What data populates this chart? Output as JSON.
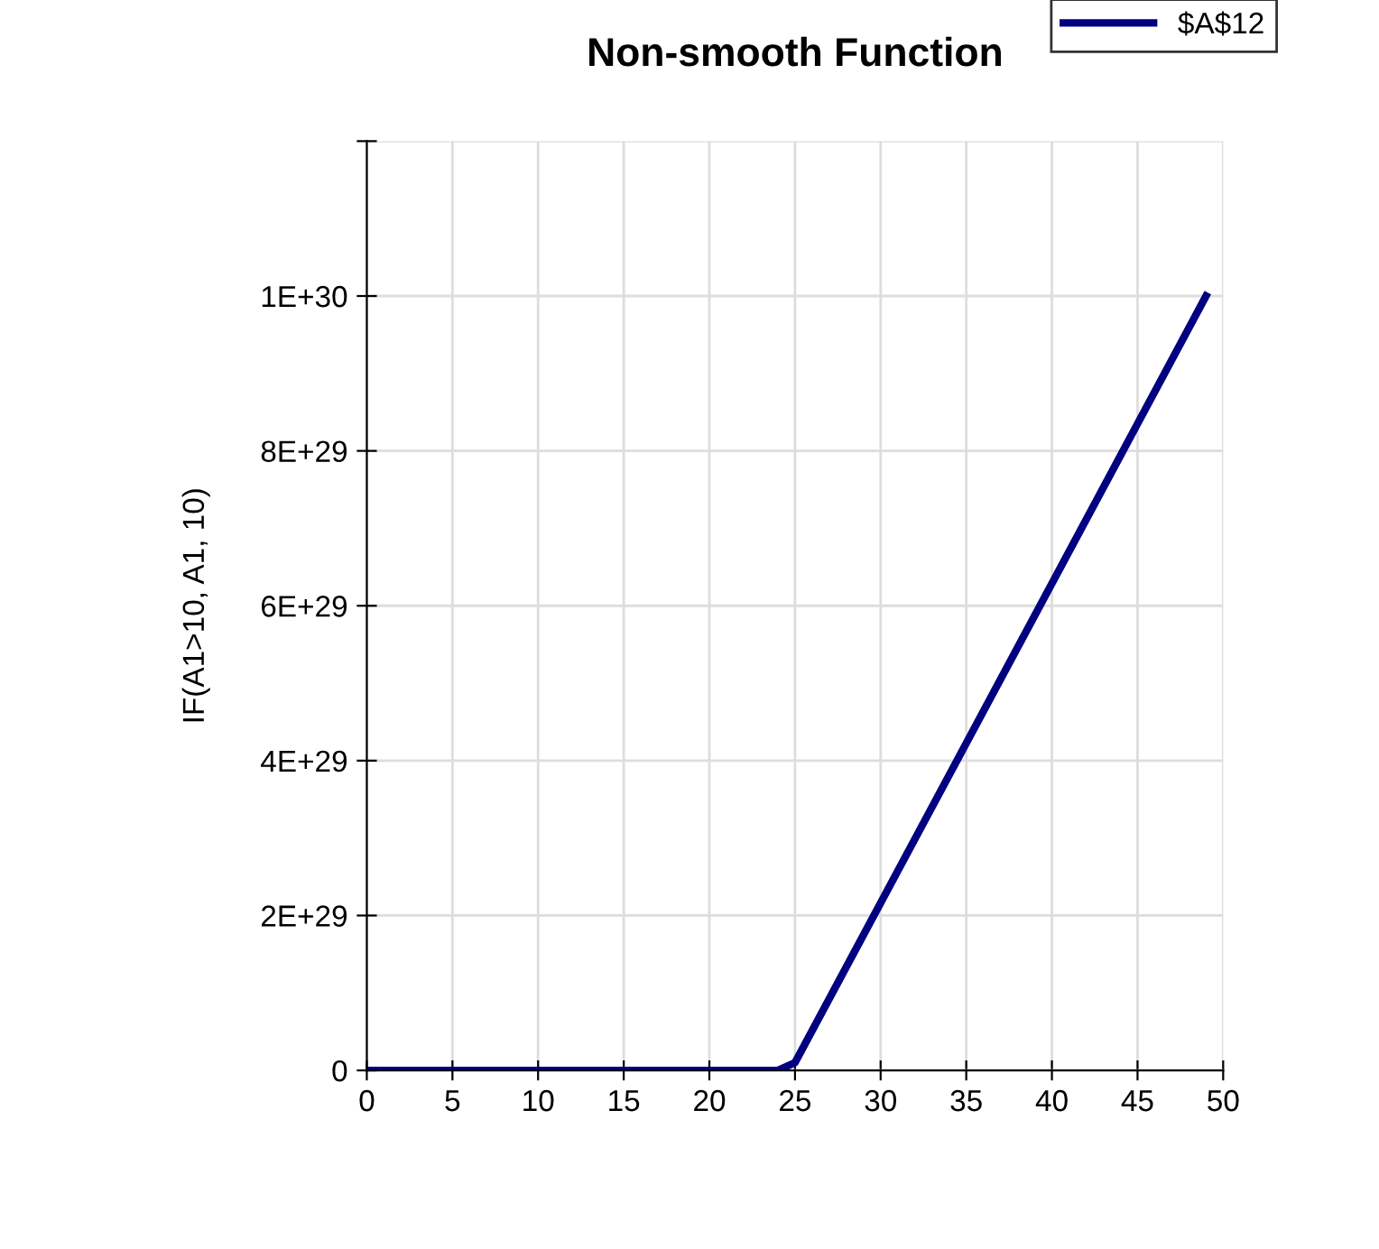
{
  "chart_data": {
    "type": "line",
    "title": "Non-smooth Function",
    "ylabel": "IF(A1>10, A1, 10)",
    "x": [
      0,
      24,
      25,
      49
    ],
    "series": [
      {
        "name": "$A$12",
        "color": "#000080",
        "values": [
          0,
          0,
          1e+28,
          1e+30
        ]
      }
    ],
    "xlim": [
      0,
      50
    ],
    "xticks": [
      0,
      5,
      10,
      15,
      20,
      25,
      30,
      35,
      40,
      45,
      50
    ],
    "ylim": [
      0,
      1.2e+30
    ],
    "yticks": [
      {
        "value": 0,
        "label": "0"
      },
      {
        "value": 2e+29,
        "label": "2E+29"
      },
      {
        "value": 4e+29,
        "label": "4E+29"
      },
      {
        "value": 6e+29,
        "label": "6E+29"
      },
      {
        "value": 8e+29,
        "label": "8E+29"
      },
      {
        "value": 1e+30,
        "label": "1E+30"
      },
      {
        "value": 1.2e+30,
        "label": null
      }
    ],
    "grid": true,
    "legend": "top right",
    "marker": "none",
    "line_style": "solid"
  }
}
